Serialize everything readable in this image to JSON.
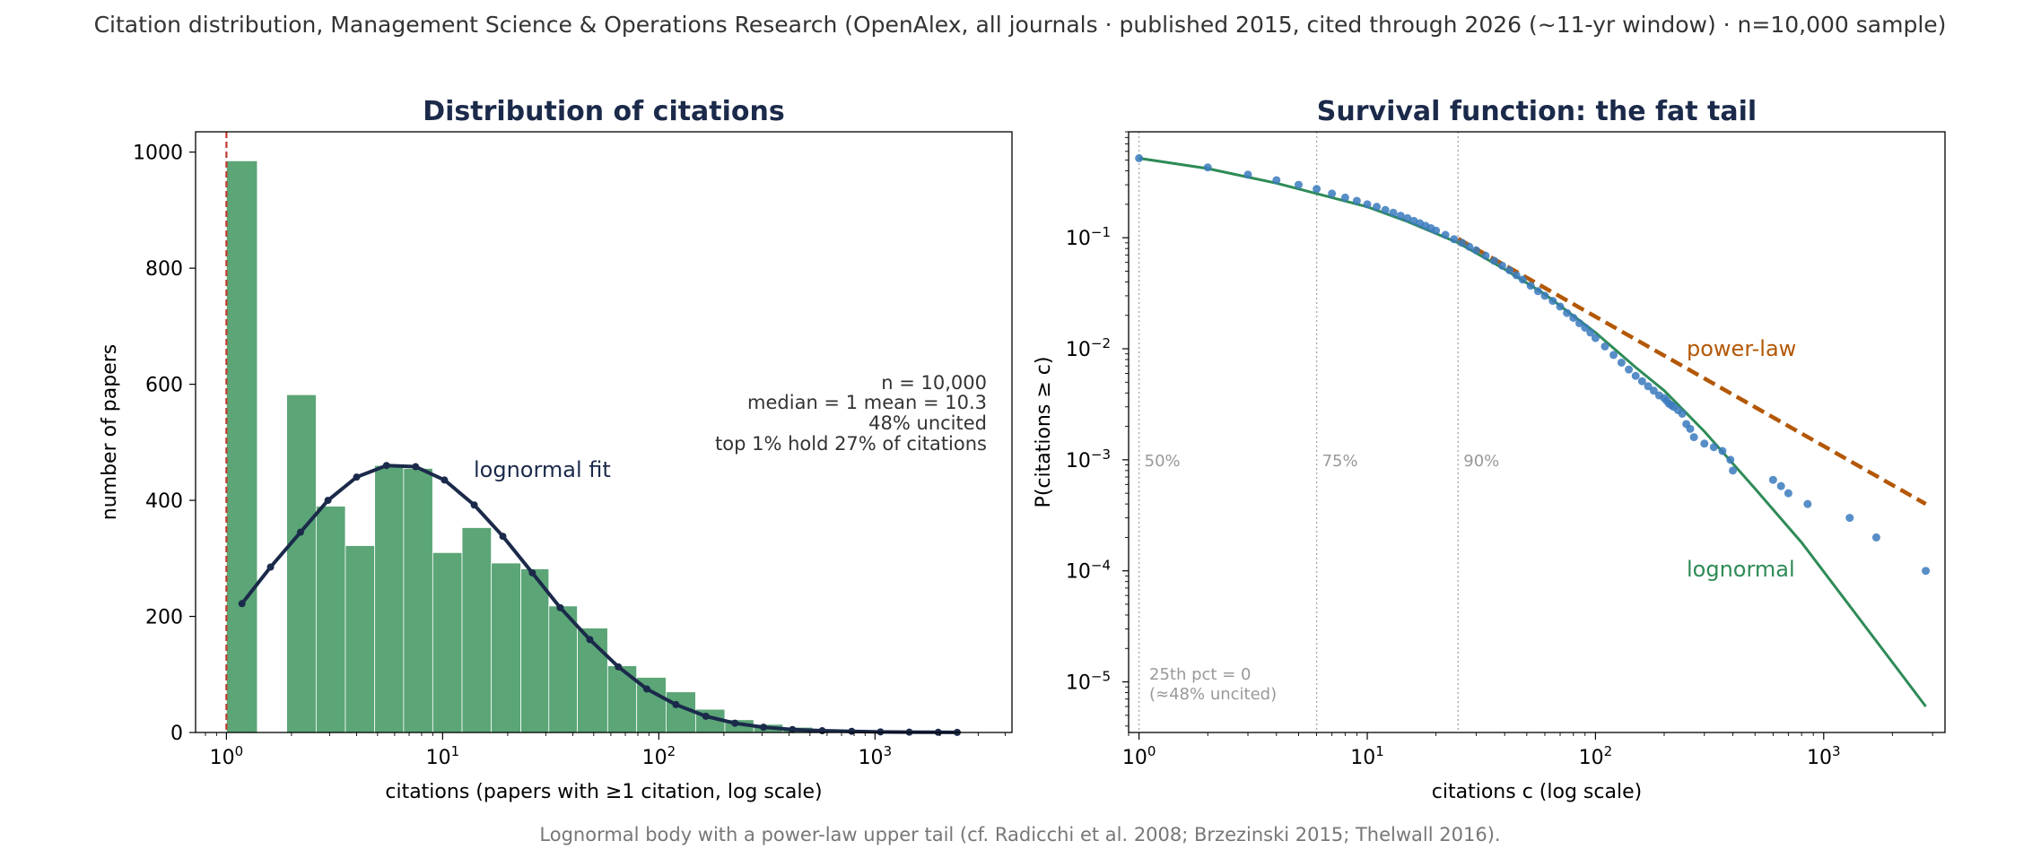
{
  "figure": {
    "suptitle": "Citation distribution, Management Science & Operations Research (OpenAlex, all journals · published 2015, cited through 2026 (~11-yr window) · n=10,000 sample)",
    "footer": "Lognormal body with a power-law upper tail (cf. Radicchi et al. 2008; Brzezinski 2015; Thelwall 2016)."
  },
  "colors": {
    "bar": "#5ba577",
    "fit_line": "#1b2a4a",
    "median_line": "#c0392b",
    "points": "#3a7abd",
    "lognormal": "#2e8b57",
    "powerlaw": "#b35806",
    "title": "#1b2a4a"
  },
  "chart_data": [
    {
      "type": "bar",
      "title": "Distribution of citations",
      "xlabel": "citations  (papers with ≥1 citation, log scale)",
      "ylabel": "number of papers",
      "xscale": "log",
      "xlim": [
        0.72,
        4300
      ],
      "ylim": [
        0,
        1035
      ],
      "yticks": [
        0,
        200,
        400,
        600,
        800,
        1000
      ],
      "xticks": [
        {
          "value": 1,
          "base": "10",
          "exp": "0"
        },
        {
          "value": 10,
          "base": "10",
          "exp": "1"
        },
        {
          "value": 100,
          "base": "10",
          "exp": "2"
        },
        {
          "value": 1000,
          "base": "10",
          "exp": "3"
        }
      ],
      "bins": [
        {
          "lo": 1.0,
          "hi": 1.39,
          "count": 985
        },
        {
          "lo": 1.9,
          "hi": 2.6,
          "count": 582
        },
        {
          "lo": 2.6,
          "hi": 3.55,
          "count": 390
        },
        {
          "lo": 3.55,
          "hi": 4.85,
          "count": 322
        },
        {
          "lo": 4.85,
          "hi": 6.6,
          "count": 460
        },
        {
          "lo": 6.6,
          "hi": 9.0,
          "count": 455
        },
        {
          "lo": 9.0,
          "hi": 12.3,
          "count": 310
        },
        {
          "lo": 12.3,
          "hi": 16.8,
          "count": 353
        },
        {
          "lo": 16.8,
          "hi": 23.0,
          "count": 292
        },
        {
          "lo": 23.0,
          "hi": 31.0,
          "count": 282
        },
        {
          "lo": 31.0,
          "hi": 42.0,
          "count": 218
        },
        {
          "lo": 42.0,
          "hi": 58.0,
          "count": 180
        },
        {
          "lo": 58.0,
          "hi": 79.0,
          "count": 115
        },
        {
          "lo": 79.0,
          "hi": 108.0,
          "count": 95
        },
        {
          "lo": 108.0,
          "hi": 148.0,
          "count": 70
        },
        {
          "lo": 148.0,
          "hi": 202.0,
          "count": 40
        },
        {
          "lo": 202.0,
          "hi": 275.0,
          "count": 22
        },
        {
          "lo": 275.0,
          "hi": 375.0,
          "count": 14
        },
        {
          "lo": 375.0,
          "hi": 515.0,
          "count": 9
        },
        {
          "lo": 515.0,
          "hi": 700.0,
          "count": 5
        },
        {
          "lo": 700.0,
          "hi": 960.0,
          "count": 3
        },
        {
          "lo": 960.0,
          "hi": 1310.0,
          "count": 2
        },
        {
          "lo": 1310.0,
          "hi": 1790.0,
          "count": 2
        },
        {
          "lo": 1790.0,
          "hi": 2450.0,
          "count": 2
        }
      ],
      "fit": {
        "name": "lognormal fit",
        "x": [
          1.18,
          1.6,
          2.2,
          2.95,
          4.0,
          5.5,
          7.5,
          10.2,
          14.0,
          19.0,
          26.0,
          35.0,
          48.0,
          65.0,
          88.0,
          120.0,
          165.0,
          225.0,
          305.0,
          415.0,
          570.0,
          780.0,
          1060.0,
          1440.0,
          1960.0,
          2400.0
        ],
        "y": [
          222,
          285,
          345,
          400,
          440,
          460,
          458,
          435,
          392,
          338,
          275,
          215,
          160,
          113,
          75,
          48,
          28,
          16,
          9,
          5,
          3,
          2,
          1,
          0.5,
          0.3,
          0.2
        ]
      },
      "median_line_x": 1.0,
      "stats": [
        "n = 10,000",
        "median = 1   mean = 10.3",
        "48% uncited",
        "top 1% hold 27% of citations"
      ]
    },
    {
      "type": "scatter",
      "title": "Survival function: the fat tail",
      "xlabel": "citations  c  (log scale)",
      "ylabel": "P(citations ≥ c)",
      "xscale": "log",
      "yscale": "log",
      "xlim": [
        0.9,
        3400
      ],
      "ylim": [
        3.5e-06,
        0.9
      ],
      "xticks": [
        {
          "value": 1,
          "base": "10",
          "exp": "0"
        },
        {
          "value": 10,
          "base": "10",
          "exp": "1"
        },
        {
          "value": 100,
          "base": "10",
          "exp": "2"
        },
        {
          "value": 1000,
          "base": "10",
          "exp": "3"
        }
      ],
      "yticks": [
        {
          "value": 0.1,
          "base": "10",
          "exp": "−1"
        },
        {
          "value": 0.01,
          "base": "10",
          "exp": "−2"
        },
        {
          "value": 0.001,
          "base": "10",
          "exp": "−3"
        },
        {
          "value": 0.0001,
          "base": "10",
          "exp": "−4"
        },
        {
          "value": 1e-05,
          "base": "10",
          "exp": "−5"
        }
      ],
      "points": {
        "x": [
          1,
          2,
          3,
          4,
          5,
          6,
          7,
          8,
          9,
          10,
          11,
          12,
          13,
          14,
          15,
          16,
          17,
          18,
          19,
          20,
          22,
          24,
          26,
          28,
          30,
          33,
          36,
          39,
          42,
          45,
          48,
          52,
          56,
          60,
          65,
          70,
          75,
          80,
          85,
          90,
          95,
          100,
          110,
          120,
          130,
          140,
          150,
          160,
          170,
          180,
          190,
          200,
          205,
          210,
          215,
          220,
          230,
          240,
          250,
          260,
          270,
          300,
          330,
          360,
          390,
          400,
          600,
          650,
          700,
          850,
          1300,
          1700,
          2800
        ],
        "y": [
          0.52,
          0.43,
          0.37,
          0.33,
          0.3,
          0.275,
          0.25,
          0.23,
          0.215,
          0.2,
          0.19,
          0.178,
          0.168,
          0.158,
          0.15,
          0.142,
          0.135,
          0.128,
          0.122,
          0.116,
          0.106,
          0.097,
          0.09,
          0.083,
          0.077,
          0.069,
          0.062,
          0.056,
          0.051,
          0.046,
          0.042,
          0.037,
          0.033,
          0.03,
          0.027,
          0.024,
          0.021,
          0.019,
          0.017,
          0.0155,
          0.014,
          0.0125,
          0.0105,
          0.0088,
          0.0075,
          0.0065,
          0.0057,
          0.0051,
          0.0046,
          0.0042,
          0.0038,
          0.0036,
          0.0034,
          0.0032,
          0.0031,
          0.003,
          0.0028,
          0.0026,
          0.0021,
          0.0019,
          0.0016,
          0.0014,
          0.0013,
          0.0012,
          0.001,
          0.0008,
          0.00066,
          0.00058,
          0.0005,
          0.0004,
          0.0003,
          0.0002,
          0.0001
        ]
      },
      "lognormal": {
        "name": "lognormal",
        "x": [
          1,
          2,
          4,
          6,
          10,
          15,
          25,
          40,
          60,
          100,
          150,
          200,
          300,
          500,
          800,
          1200,
          2000,
          2800
        ],
        "y": [
          0.52,
          0.42,
          0.31,
          0.25,
          0.19,
          0.14,
          0.09,
          0.052,
          0.031,
          0.014,
          0.0068,
          0.0042,
          0.0018,
          0.00055,
          0.00018,
          6e-05,
          1.5e-05,
          6e-06
        ]
      },
      "powerlaw": {
        "name": "power-law",
        "x": [
          25,
          2800
        ],
        "y": [
          0.098,
          0.0004
        ]
      },
      "percentile_lines": [
        {
          "x": 1.0,
          "label": "50%"
        },
        {
          "x": 6.0,
          "label": "75%"
        },
        {
          "x": 25.0,
          "label": "90%"
        }
      ],
      "pct25_note": [
        "25th pct = 0",
        "(≈48% uncited)"
      ]
    }
  ]
}
